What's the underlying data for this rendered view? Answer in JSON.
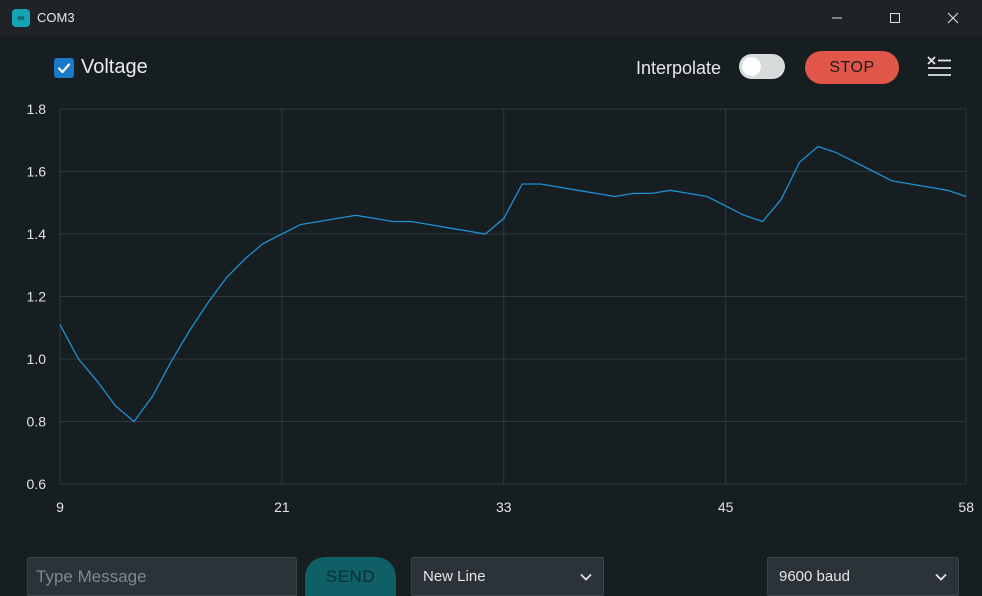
{
  "window": {
    "title": "COM3",
    "icon": "arduino-infinity-icon"
  },
  "toolbar": {
    "series_label": "Voltage",
    "series_checked": true,
    "interpolate_label": "Interpolate",
    "interpolate_on": false,
    "stop_label": "STOP",
    "clear_icon": "clear-list-icon"
  },
  "colors": {
    "background": "#171e21",
    "grid": "#2f383c",
    "series": "#1d8fd6",
    "stop": "#e0574a",
    "send": "#0f5f66",
    "checkbox": "#1a7ac9"
  },
  "chart_data": {
    "type": "line",
    "title": "",
    "xlabel": "",
    "ylabel": "",
    "xlim": [
      9,
      58
    ],
    "ylim": [
      0.6,
      1.8
    ],
    "x_ticks": [
      "9",
      "21",
      "33",
      "45",
      "58"
    ],
    "x_tick_values": [
      9,
      21,
      33,
      45,
      58
    ],
    "y_ticks": [
      "0.6",
      "0.8",
      "1.0",
      "1.2",
      "1.4",
      "1.6",
      "1.8"
    ],
    "y_tick_values": [
      0.6,
      0.8,
      1.0,
      1.2,
      1.4,
      1.6,
      1.8
    ],
    "grid": true,
    "series": [
      {
        "x": [
          9,
          10,
          11,
          12,
          13,
          14,
          15,
          16,
          17,
          18,
          19,
          20,
          21,
          22,
          23,
          24,
          25,
          26,
          27,
          28,
          29,
          30,
          31,
          32,
          33,
          34,
          35,
          36,
          37,
          38,
          39,
          40,
          41,
          42,
          43,
          44,
          45,
          46,
          47,
          48,
          49,
          50,
          51,
          52,
          53,
          54,
          55,
          56,
          57,
          58
        ],
        "y": [
          1.11,
          1.0,
          0.93,
          0.85,
          0.8,
          0.88,
          0.99,
          1.09,
          1.18,
          1.26,
          1.32,
          1.37,
          1.4,
          1.43,
          1.44,
          1.45,
          1.46,
          1.45,
          1.44,
          1.44,
          1.43,
          1.42,
          1.41,
          1.4,
          1.45,
          1.56,
          1.56,
          1.55,
          1.54,
          1.53,
          1.52,
          1.53,
          1.53,
          1.54,
          1.53,
          1.52,
          1.49,
          1.46,
          1.44,
          1.51,
          1.63,
          1.68,
          1.66,
          1.63,
          1.6,
          1.57,
          1.56,
          1.55,
          1.54,
          1.52
        ]
      }
    ]
  },
  "footer": {
    "message_placeholder": "Type Message",
    "message_value": "",
    "send_label": "SEND",
    "line_ending": "New Line",
    "baud": "9600 baud"
  }
}
